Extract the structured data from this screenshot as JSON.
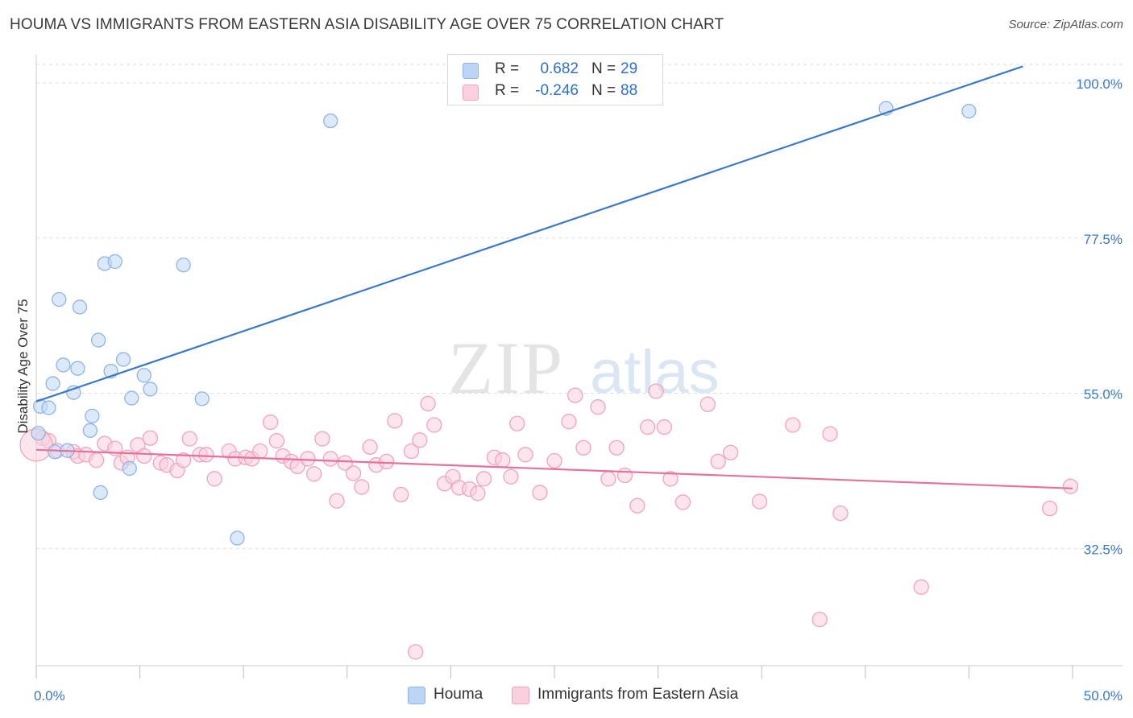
{
  "header": {
    "title": "HOUMA VS IMMIGRANTS FROM EASTERN ASIA DISABILITY AGE OVER 75 CORRELATION CHART",
    "source": "Source: ZipAtlas.com"
  },
  "watermark": {
    "zip": "ZIP",
    "atlas": "atlas"
  },
  "stats": [
    {
      "r_label": "R =",
      "r_value": "0.682",
      "n_label": "N =",
      "n_value": "29",
      "color": "#8fb4e8",
      "fill": "#bcd4f6"
    },
    {
      "r_label": "R =",
      "r_value": "-0.246",
      "n_label": "N =",
      "n_value": "88",
      "color": "#f0a3bd",
      "fill": "#fbcfdd"
    }
  ],
  "legend": [
    {
      "label": "Houma",
      "color": "#8fb4e8",
      "fill": "#bcd4f6"
    },
    {
      "label": "Immigrants from Eastern Asia",
      "color": "#f0a3bd",
      "fill": "#fbcfdd"
    }
  ],
  "colors": {
    "houma_stroke": "#8fb4e8",
    "houma_fill": "#c5daf5",
    "houma_line": "#3a78c9",
    "imm_stroke": "#f0a3bd",
    "imm_fill": "#f9cfdc",
    "imm_line": "#e8709a",
    "axis_text": "#3a78c9",
    "grid": "#dddddd"
  },
  "chart_data": {
    "type": "scatter",
    "title": "HOUMA VS IMMIGRANTS FROM EASTERN ASIA DISABILITY AGE OVER 75 CORRELATION CHART",
    "xlabel": "",
    "ylabel": "Disability Age Over 75",
    "xlim": [
      0,
      50
    ],
    "ylim": [
      15.5,
      103.5
    ],
    "x_tick_labels": [
      "0.0%",
      "50.0%"
    ],
    "y_ticks": [
      32.5,
      55.0,
      77.5,
      100.0
    ],
    "y_tick_labels": [
      "32.5%",
      "55.0%",
      "77.5%",
      "100.0%"
    ],
    "grid": true,
    "series": [
      {
        "name": "Houma",
        "r": 0.682,
        "n": 29,
        "trend": {
          "x": [
            0,
            47.6
          ],
          "y": [
            53.8,
            102.4
          ]
        },
        "points": [
          [
            14.2,
            94.5
          ],
          [
            41.0,
            96.3
          ],
          [
            45.0,
            95.9
          ],
          [
            3.3,
            73.8
          ],
          [
            3.8,
            74.1
          ],
          [
            7.1,
            73.6
          ],
          [
            1.1,
            68.6
          ],
          [
            2.1,
            67.5
          ],
          [
            3.0,
            62.7
          ],
          [
            1.3,
            59.1
          ],
          [
            2.0,
            58.6
          ],
          [
            3.6,
            58.2
          ],
          [
            4.2,
            59.9
          ],
          [
            5.2,
            57.6
          ],
          [
            0.8,
            56.4
          ],
          [
            1.8,
            55.1
          ],
          [
            4.6,
            54.3
          ],
          [
            5.5,
            55.6
          ],
          [
            8.0,
            54.2
          ],
          [
            0.2,
            53.1
          ],
          [
            0.6,
            52.9
          ],
          [
            2.7,
            51.7
          ],
          [
            2.6,
            49.6
          ],
          [
            0.1,
            49.2
          ],
          [
            0.9,
            46.5
          ],
          [
            1.5,
            46.7
          ],
          [
            4.5,
            44.1
          ],
          [
            3.1,
            40.6
          ],
          [
            9.7,
            34.0
          ]
        ]
      },
      {
        "name": "Immigrants from Eastern Asia",
        "r": -0.246,
        "n": 88,
        "trend": {
          "x": [
            0,
            50
          ],
          "y": [
            46.8,
            41.2
          ]
        },
        "points": [
          [
            0.3,
            48.5
          ],
          [
            0.6,
            48.1
          ],
          [
            1.0,
            46.7
          ],
          [
            1.8,
            46.5
          ],
          [
            2.0,
            45.9
          ],
          [
            2.4,
            46.1
          ],
          [
            2.9,
            45.3
          ],
          [
            3.3,
            47.7
          ],
          [
            3.8,
            47.0
          ],
          [
            4.1,
            44.9
          ],
          [
            4.4,
            45.7
          ],
          [
            4.9,
            47.5
          ],
          [
            5.2,
            45.9
          ],
          [
            5.5,
            48.5
          ],
          [
            6.0,
            44.9
          ],
          [
            6.3,
            44.6
          ],
          [
            6.8,
            43.8
          ],
          [
            7.1,
            45.3
          ],
          [
            7.4,
            48.4
          ],
          [
            7.9,
            46.1
          ],
          [
            8.2,
            46.1
          ],
          [
            8.6,
            42.6
          ],
          [
            9.3,
            46.6
          ],
          [
            9.6,
            45.5
          ],
          [
            10.1,
            45.7
          ],
          [
            10.4,
            45.5
          ],
          [
            10.8,
            46.6
          ],
          [
            11.3,
            50.8
          ],
          [
            11.6,
            48.1
          ],
          [
            11.9,
            45.9
          ],
          [
            12.3,
            45.1
          ],
          [
            12.6,
            44.4
          ],
          [
            13.1,
            45.5
          ],
          [
            13.4,
            43.3
          ],
          [
            13.8,
            48.4
          ],
          [
            14.2,
            45.5
          ],
          [
            14.5,
            39.4
          ],
          [
            14.9,
            44.9
          ],
          [
            15.3,
            43.4
          ],
          [
            15.7,
            41.4
          ],
          [
            16.1,
            47.2
          ],
          [
            16.4,
            44.6
          ],
          [
            16.9,
            45.1
          ],
          [
            17.3,
            51.0
          ],
          [
            17.6,
            40.3
          ],
          [
            18.1,
            46.6
          ],
          [
            18.5,
            48.2
          ],
          [
            18.9,
            53.5
          ],
          [
            19.2,
            50.4
          ],
          [
            19.7,
            41.9
          ],
          [
            20.1,
            42.9
          ],
          [
            20.4,
            41.3
          ],
          [
            20.9,
            41.1
          ],
          [
            21.3,
            40.5
          ],
          [
            21.6,
            42.6
          ],
          [
            22.1,
            45.7
          ],
          [
            22.5,
            45.3
          ],
          [
            22.9,
            42.9
          ],
          [
            23.2,
            50.6
          ],
          [
            23.6,
            46.1
          ],
          [
            24.3,
            40.6
          ],
          [
            25.0,
            45.2
          ],
          [
            25.7,
            50.9
          ],
          [
            26.0,
            54.7
          ],
          [
            26.4,
            47.1
          ],
          [
            27.1,
            53.0
          ],
          [
            27.6,
            42.6
          ],
          [
            28.0,
            47.1
          ],
          [
            28.4,
            43.1
          ],
          [
            29.0,
            38.7
          ],
          [
            29.5,
            50.1
          ],
          [
            29.9,
            55.3
          ],
          [
            30.3,
            50.1
          ],
          [
            30.6,
            42.6
          ],
          [
            31.2,
            39.2
          ],
          [
            32.4,
            53.4
          ],
          [
            32.9,
            45.1
          ],
          [
            33.5,
            46.4
          ],
          [
            34.9,
            39.3
          ],
          [
            36.5,
            50.4
          ],
          [
            38.3,
            49.1
          ],
          [
            38.8,
            37.6
          ],
          [
            37.8,
            22.2
          ],
          [
            42.7,
            26.9
          ],
          [
            48.9,
            38.3
          ],
          [
            49.9,
            41.5
          ],
          [
            18.3,
            17.5
          ],
          [
            0.0,
            47.5
          ]
        ]
      }
    ]
  }
}
